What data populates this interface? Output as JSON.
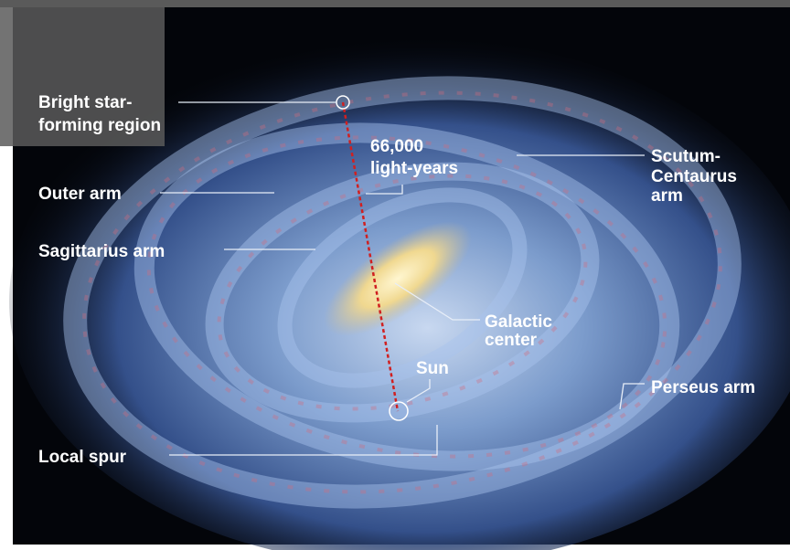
{
  "labels": [
    {
      "lines": [
        "Bright star-",
        "forming region"
      ]
    },
    {
      "lines": [
        "66,000",
        "light-years"
      ]
    },
    {
      "lines": [
        "Scutum-",
        "Centaurus",
        "arm"
      ]
    },
    {
      "lines": [
        "Outer arm"
      ]
    },
    {
      "lines": [
        "Sagittarius arm"
      ]
    },
    {
      "lines": [
        "Galactic",
        "center"
      ]
    },
    {
      "lines": [
        "Sun"
      ]
    },
    {
      "lines": [
        "Perseus arm"
      ]
    },
    {
      "lines": [
        "Local spur"
      ]
    }
  ]
}
